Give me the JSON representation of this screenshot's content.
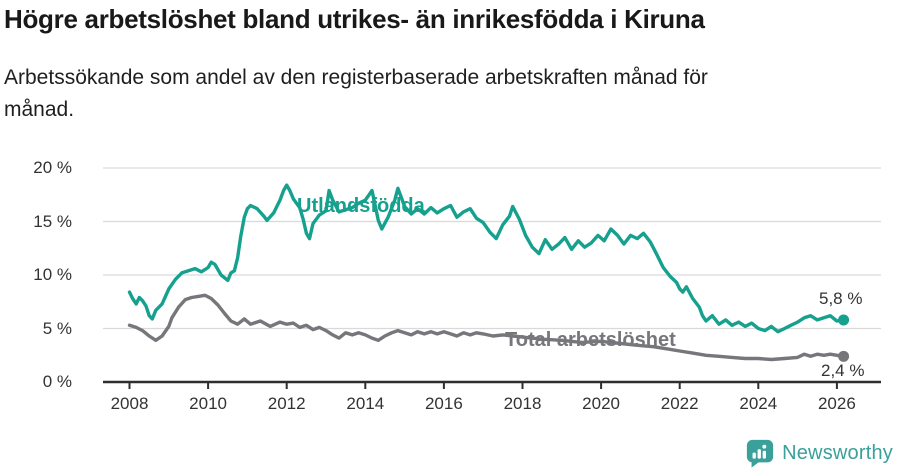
{
  "chart_data": {
    "type": "line",
    "title": "Högre arbetslöshet bland utrikes- än inrikesfödda i Kiruna",
    "subtitle": "Arbetssökande som andel av den registerbaserade arbetskraften månad för månad.",
    "grid": "horizontal",
    "legend_position": "inline-annotations",
    "ylim": [
      0,
      21
    ],
    "xlim": [
      2007.4,
      2027.1
    ],
    "y_axis": {
      "values": [
        0,
        5,
        10,
        15,
        20
      ],
      "labels": [
        "0 %",
        "5 %",
        "10 %",
        "15 %",
        "20 %"
      ]
    },
    "x_axis": {
      "values": [
        2008,
        2010,
        2012,
        2014,
        2016,
        2018,
        2020,
        2022,
        2024,
        2026
      ],
      "labels": [
        "2008",
        "2010",
        "2012",
        "2014",
        "2016",
        "2018",
        "2020",
        "2022",
        "2024",
        "2026"
      ]
    },
    "series": [
      {
        "name": "Utlandsfödda",
        "color": "#16a08e",
        "end_label": "5,8 %",
        "end_value": 5.8,
        "points": [
          [
            2008.0,
            8.4
          ],
          [
            2008.08,
            7.8
          ],
          [
            2008.17,
            7.3
          ],
          [
            2008.25,
            7.9
          ],
          [
            2008.33,
            7.6
          ],
          [
            2008.42,
            7.1
          ],
          [
            2008.5,
            6.2
          ],
          [
            2008.58,
            5.9
          ],
          [
            2008.67,
            6.7
          ],
          [
            2008.83,
            7.3
          ],
          [
            2009.0,
            8.7
          ],
          [
            2009.17,
            9.6
          ],
          [
            2009.33,
            10.2
          ],
          [
            2009.5,
            10.4
          ],
          [
            2009.67,
            10.6
          ],
          [
            2009.83,
            10.3
          ],
          [
            2010.0,
            10.7
          ],
          [
            2010.08,
            11.2
          ],
          [
            2010.17,
            11.0
          ],
          [
            2010.33,
            10.0
          ],
          [
            2010.5,
            9.5
          ],
          [
            2010.58,
            10.2
          ],
          [
            2010.67,
            10.4
          ],
          [
            2010.75,
            11.6
          ],
          [
            2010.83,
            13.6
          ],
          [
            2010.92,
            15.4
          ],
          [
            2011.0,
            16.2
          ],
          [
            2011.08,
            16.5
          ],
          [
            2011.25,
            16.2
          ],
          [
            2011.42,
            15.5
          ],
          [
            2011.5,
            15.1
          ],
          [
            2011.67,
            15.8
          ],
          [
            2011.83,
            17.0
          ],
          [
            2011.92,
            17.9
          ],
          [
            2012.0,
            18.4
          ],
          [
            2012.08,
            17.9
          ],
          [
            2012.17,
            17.1
          ],
          [
            2012.33,
            16.3
          ],
          [
            2012.42,
            15.2
          ],
          [
            2012.5,
            13.9
          ],
          [
            2012.58,
            13.4
          ],
          [
            2012.67,
            14.8
          ],
          [
            2012.83,
            15.6
          ],
          [
            2013.0,
            16.0
          ],
          [
            2013.08,
            17.9
          ],
          [
            2013.17,
            17.0
          ],
          [
            2013.33,
            15.9
          ],
          [
            2013.5,
            16.1
          ],
          [
            2013.67,
            16.3
          ],
          [
            2013.83,
            16.7
          ],
          [
            2014.0,
            17.0
          ],
          [
            2014.08,
            17.4
          ],
          [
            2014.17,
            17.9
          ],
          [
            2014.33,
            15.1
          ],
          [
            2014.42,
            14.3
          ],
          [
            2014.58,
            15.4
          ],
          [
            2014.75,
            17.0
          ],
          [
            2014.83,
            18.1
          ],
          [
            2014.92,
            17.2
          ],
          [
            2015.0,
            16.4
          ],
          [
            2015.17,
            15.7
          ],
          [
            2015.33,
            16.2
          ],
          [
            2015.5,
            15.7
          ],
          [
            2015.67,
            16.3
          ],
          [
            2015.83,
            15.8
          ],
          [
            2016.0,
            16.2
          ],
          [
            2016.17,
            16.5
          ],
          [
            2016.33,
            15.4
          ],
          [
            2016.5,
            15.9
          ],
          [
            2016.67,
            16.2
          ],
          [
            2016.83,
            15.3
          ],
          [
            2017.0,
            14.9
          ],
          [
            2017.17,
            14.0
          ],
          [
            2017.33,
            13.4
          ],
          [
            2017.5,
            14.7
          ],
          [
            2017.67,
            15.5
          ],
          [
            2017.75,
            16.4
          ],
          [
            2017.92,
            15.2
          ],
          [
            2018.08,
            13.7
          ],
          [
            2018.25,
            12.6
          ],
          [
            2018.42,
            12.0
          ],
          [
            2018.58,
            13.3
          ],
          [
            2018.75,
            12.4
          ],
          [
            2018.92,
            12.9
          ],
          [
            2019.08,
            13.5
          ],
          [
            2019.25,
            12.4
          ],
          [
            2019.42,
            13.2
          ],
          [
            2019.58,
            12.6
          ],
          [
            2019.75,
            13.0
          ],
          [
            2019.92,
            13.7
          ],
          [
            2020.08,
            13.2
          ],
          [
            2020.25,
            14.3
          ],
          [
            2020.42,
            13.7
          ],
          [
            2020.58,
            12.9
          ],
          [
            2020.75,
            13.7
          ],
          [
            2020.92,
            13.4
          ],
          [
            2021.08,
            13.9
          ],
          [
            2021.25,
            13.1
          ],
          [
            2021.42,
            11.9
          ],
          [
            2021.58,
            10.7
          ],
          [
            2021.75,
            9.9
          ],
          [
            2021.92,
            9.3
          ],
          [
            2022.0,
            8.7
          ],
          [
            2022.08,
            8.4
          ],
          [
            2022.17,
            8.9
          ],
          [
            2022.33,
            7.8
          ],
          [
            2022.5,
            7.0
          ],
          [
            2022.58,
            6.2
          ],
          [
            2022.67,
            5.7
          ],
          [
            2022.83,
            6.2
          ],
          [
            2023.0,
            5.4
          ],
          [
            2023.17,
            5.8
          ],
          [
            2023.33,
            5.3
          ],
          [
            2023.5,
            5.6
          ],
          [
            2023.67,
            5.2
          ],
          [
            2023.83,
            5.5
          ],
          [
            2024.0,
            5.0
          ],
          [
            2024.17,
            4.8
          ],
          [
            2024.33,
            5.2
          ],
          [
            2024.5,
            4.7
          ],
          [
            2024.67,
            5.0
          ],
          [
            2024.83,
            5.3
          ],
          [
            2025.0,
            5.6
          ],
          [
            2025.17,
            6.0
          ],
          [
            2025.33,
            6.2
          ],
          [
            2025.5,
            5.8
          ],
          [
            2025.67,
            6.0
          ],
          [
            2025.83,
            6.2
          ],
          [
            2026.0,
            5.7
          ],
          [
            2026.17,
            5.8
          ]
        ]
      },
      {
        "name": "Total arbetslöshet",
        "color": "#76767b",
        "end_label": "2,4 %",
        "end_value": 2.4,
        "points": [
          [
            2008.0,
            5.3
          ],
          [
            2008.17,
            5.1
          ],
          [
            2008.33,
            4.8
          ],
          [
            2008.5,
            4.3
          ],
          [
            2008.67,
            3.9
          ],
          [
            2008.83,
            4.3
          ],
          [
            2009.0,
            5.2
          ],
          [
            2009.08,
            6.0
          ],
          [
            2009.25,
            7.0
          ],
          [
            2009.42,
            7.7
          ],
          [
            2009.58,
            7.9
          ],
          [
            2009.75,
            8.0
          ],
          [
            2009.92,
            8.1
          ],
          [
            2010.08,
            7.8
          ],
          [
            2010.25,
            7.2
          ],
          [
            2010.42,
            6.4
          ],
          [
            2010.58,
            5.7
          ],
          [
            2010.75,
            5.4
          ],
          [
            2010.92,
            5.9
          ],
          [
            2011.08,
            5.4
          ],
          [
            2011.33,
            5.7
          ],
          [
            2011.58,
            5.2
          ],
          [
            2011.83,
            5.6
          ],
          [
            2012.0,
            5.4
          ],
          [
            2012.17,
            5.5
          ],
          [
            2012.33,
            5.1
          ],
          [
            2012.5,
            5.3
          ],
          [
            2012.67,
            4.9
          ],
          [
            2012.83,
            5.1
          ],
          [
            2013.0,
            4.8
          ],
          [
            2013.17,
            4.4
          ],
          [
            2013.33,
            4.1
          ],
          [
            2013.5,
            4.6
          ],
          [
            2013.67,
            4.4
          ],
          [
            2013.83,
            4.6
          ],
          [
            2014.0,
            4.4
          ],
          [
            2014.17,
            4.1
          ],
          [
            2014.33,
            3.9
          ],
          [
            2014.5,
            4.3
          ],
          [
            2014.67,
            4.6
          ],
          [
            2014.83,
            4.8
          ],
          [
            2015.0,
            4.6
          ],
          [
            2015.17,
            4.4
          ],
          [
            2015.33,
            4.7
          ],
          [
            2015.5,
            4.5
          ],
          [
            2015.67,
            4.7
          ],
          [
            2015.83,
            4.5
          ],
          [
            2016.0,
            4.7
          ],
          [
            2016.17,
            4.5
          ],
          [
            2016.33,
            4.3
          ],
          [
            2016.5,
            4.6
          ],
          [
            2016.67,
            4.4
          ],
          [
            2016.83,
            4.6
          ],
          [
            2017.0,
            4.5
          ],
          [
            2017.25,
            4.3
          ],
          [
            2017.5,
            4.4
          ],
          [
            2017.75,
            4.3
          ],
          [
            2018.0,
            4.2
          ],
          [
            2018.5,
            4.0
          ],
          [
            2019.0,
            3.9
          ],
          [
            2019.5,
            3.7
          ],
          [
            2020.0,
            3.8
          ],
          [
            2020.5,
            3.6
          ],
          [
            2021.0,
            3.4
          ],
          [
            2021.33,
            3.3
          ],
          [
            2021.67,
            3.1
          ],
          [
            2022.0,
            2.9
          ],
          [
            2022.33,
            2.7
          ],
          [
            2022.67,
            2.5
          ],
          [
            2023.0,
            2.4
          ],
          [
            2023.33,
            2.3
          ],
          [
            2023.67,
            2.2
          ],
          [
            2024.0,
            2.2
          ],
          [
            2024.33,
            2.1
          ],
          [
            2024.67,
            2.2
          ],
          [
            2025.0,
            2.3
          ],
          [
            2025.17,
            2.6
          ],
          [
            2025.33,
            2.4
          ],
          [
            2025.5,
            2.6
          ],
          [
            2025.67,
            2.5
          ],
          [
            2025.83,
            2.6
          ],
          [
            2026.0,
            2.5
          ],
          [
            2026.17,
            2.4
          ]
        ]
      }
    ],
    "colors": {
      "gridline": "#d9d9d9",
      "axis": "#2e2e2e",
      "tick_text": "#333333"
    }
  },
  "footer": {
    "brand": "Newsworthy",
    "logo_color": "#3aa09a"
  }
}
